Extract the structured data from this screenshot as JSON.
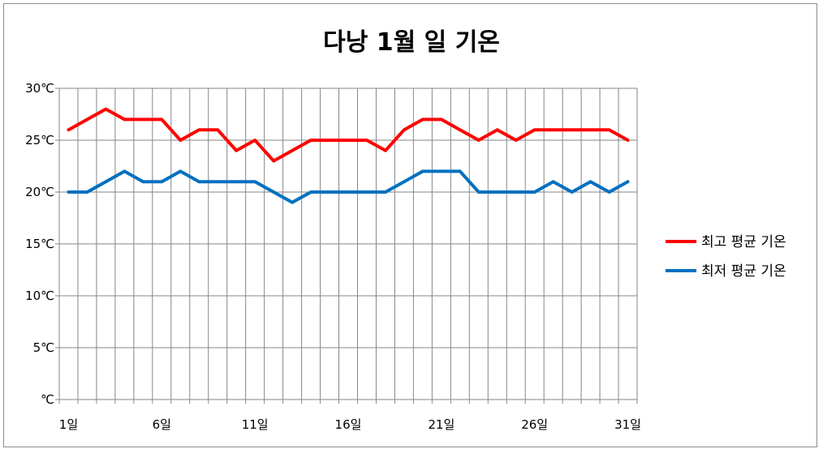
{
  "chart_data": {
    "type": "line",
    "title": "다낭 1월 일 기온",
    "x": [
      1,
      2,
      3,
      4,
      5,
      6,
      7,
      8,
      9,
      10,
      11,
      12,
      13,
      14,
      15,
      16,
      17,
      18,
      19,
      20,
      21,
      22,
      23,
      24,
      25,
      26,
      27,
      28,
      29,
      30,
      31
    ],
    "x_tick_labels": [
      "1일",
      "6일",
      "11일",
      "16일",
      "21일",
      "26일",
      "31일"
    ],
    "y_tick_labels": [
      "℃",
      "5℃",
      "10℃",
      "15℃",
      "20℃",
      "25℃",
      "30℃"
    ],
    "ylim": [
      0,
      30
    ],
    "grid": true,
    "legend_position": "right",
    "series": [
      {
        "name": "최고 평균 기온",
        "color": "#ff0000",
        "values": [
          26,
          27,
          28,
          27,
          27,
          27,
          25,
          26,
          26,
          24,
          25,
          23,
          24,
          25,
          25,
          25,
          25,
          24,
          26,
          27,
          27,
          26,
          25,
          26,
          25,
          26,
          26,
          26,
          26,
          26,
          25
        ]
      },
      {
        "name": "최저 평균 기온",
        "color": "#0070c0",
        "values": [
          20,
          20,
          21,
          22,
          21,
          21,
          22,
          21,
          21,
          21,
          21,
          20,
          19,
          20,
          20,
          20,
          20,
          20,
          21,
          22,
          22,
          22,
          20,
          20,
          20,
          20,
          21,
          20,
          21,
          20,
          21
        ]
      }
    ]
  }
}
